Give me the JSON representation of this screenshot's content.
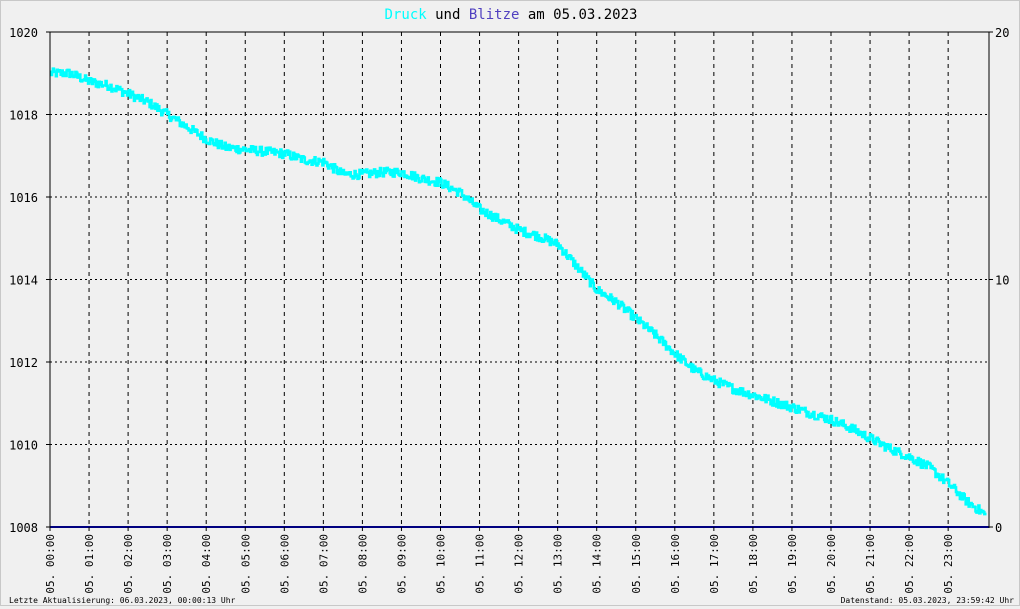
{
  "chart_data": {
    "type": "line",
    "title": {
      "part1": "Druck",
      "part2": " und ",
      "part3": "Blitze",
      "part4": " am 05.03.2023"
    },
    "y_left_ticks": [
      "1020",
      "1018",
      "1016",
      "1014",
      "1012",
      "1010",
      "1008"
    ],
    "y_right_ticks": [
      "20",
      "10",
      "0"
    ],
    "y_left_range": [
      1008,
      1020
    ],
    "y_right_range": [
      0,
      20
    ],
    "grid": true,
    "x_labels": [
      "05. 00:00",
      "05. 01:00",
      "05. 02:00",
      "05. 03:00",
      "05. 04:00",
      "05. 05:00",
      "05. 06:00",
      "05. 07:00",
      "05. 08:00",
      "05. 09:00",
      "05. 10:00",
      "05. 11:00",
      "05. 12:00",
      "05. 13:00",
      "05. 14:00",
      "05. 15:00",
      "05. 16:00",
      "05. 17:00",
      "05. 18:00",
      "05. 19:00",
      "05. 20:00",
      "05. 21:00",
      "05. 22:00",
      "05. 23:00"
    ],
    "series": [
      {
        "name": "Druck",
        "color": "#00ffff",
        "axis": "left",
        "x_hours": [
          0,
          0.5,
          1,
          1.5,
          2,
          2.5,
          3,
          3.5,
          4,
          4.5,
          5,
          5.5,
          6,
          6.5,
          7,
          7.5,
          8,
          8.5,
          9,
          9.5,
          10,
          10.5,
          11,
          11.5,
          12,
          12.5,
          13,
          13.5,
          14,
          14.5,
          15,
          15.5,
          16,
          16.5,
          17,
          17.5,
          18,
          18.5,
          19,
          19.5,
          20,
          20.5,
          21,
          21.5,
          22,
          22.5,
          23,
          23.5,
          23.95
        ],
        "values": [
          1019.0,
          1019.0,
          1018.8,
          1018.7,
          1018.5,
          1018.3,
          1018.0,
          1017.7,
          1017.4,
          1017.2,
          1017.15,
          1017.1,
          1017.05,
          1016.9,
          1016.85,
          1016.55,
          1016.55,
          1016.6,
          1016.6,
          1016.45,
          1016.35,
          1016.1,
          1015.7,
          1015.45,
          1015.2,
          1015.05,
          1014.85,
          1014.3,
          1013.75,
          1013.45,
          1013.05,
          1012.65,
          1012.2,
          1011.8,
          1011.55,
          1011.35,
          1011.2,
          1011.05,
          1010.9,
          1010.75,
          1010.6,
          1010.4,
          1010.15,
          1009.9,
          1009.7,
          1009.45,
          1009.05,
          1008.6,
          1008.3
        ]
      },
      {
        "name": "Blitze",
        "color": "#000080",
        "axis": "right",
        "x_hours": [
          0,
          23.95
        ],
        "values": [
          0,
          0
        ]
      }
    ],
    "colors": {
      "druck": "#00ffff",
      "blitze": "#5040c0",
      "title_text": "#000000",
      "grid": "#000000"
    }
  },
  "footer": {
    "left": "Letzte Aktualisierung: 06.03.2023, 00:00:13 Uhr",
    "right": "Datenstand: 05.03.2023, 23:59:42 Uhr"
  }
}
